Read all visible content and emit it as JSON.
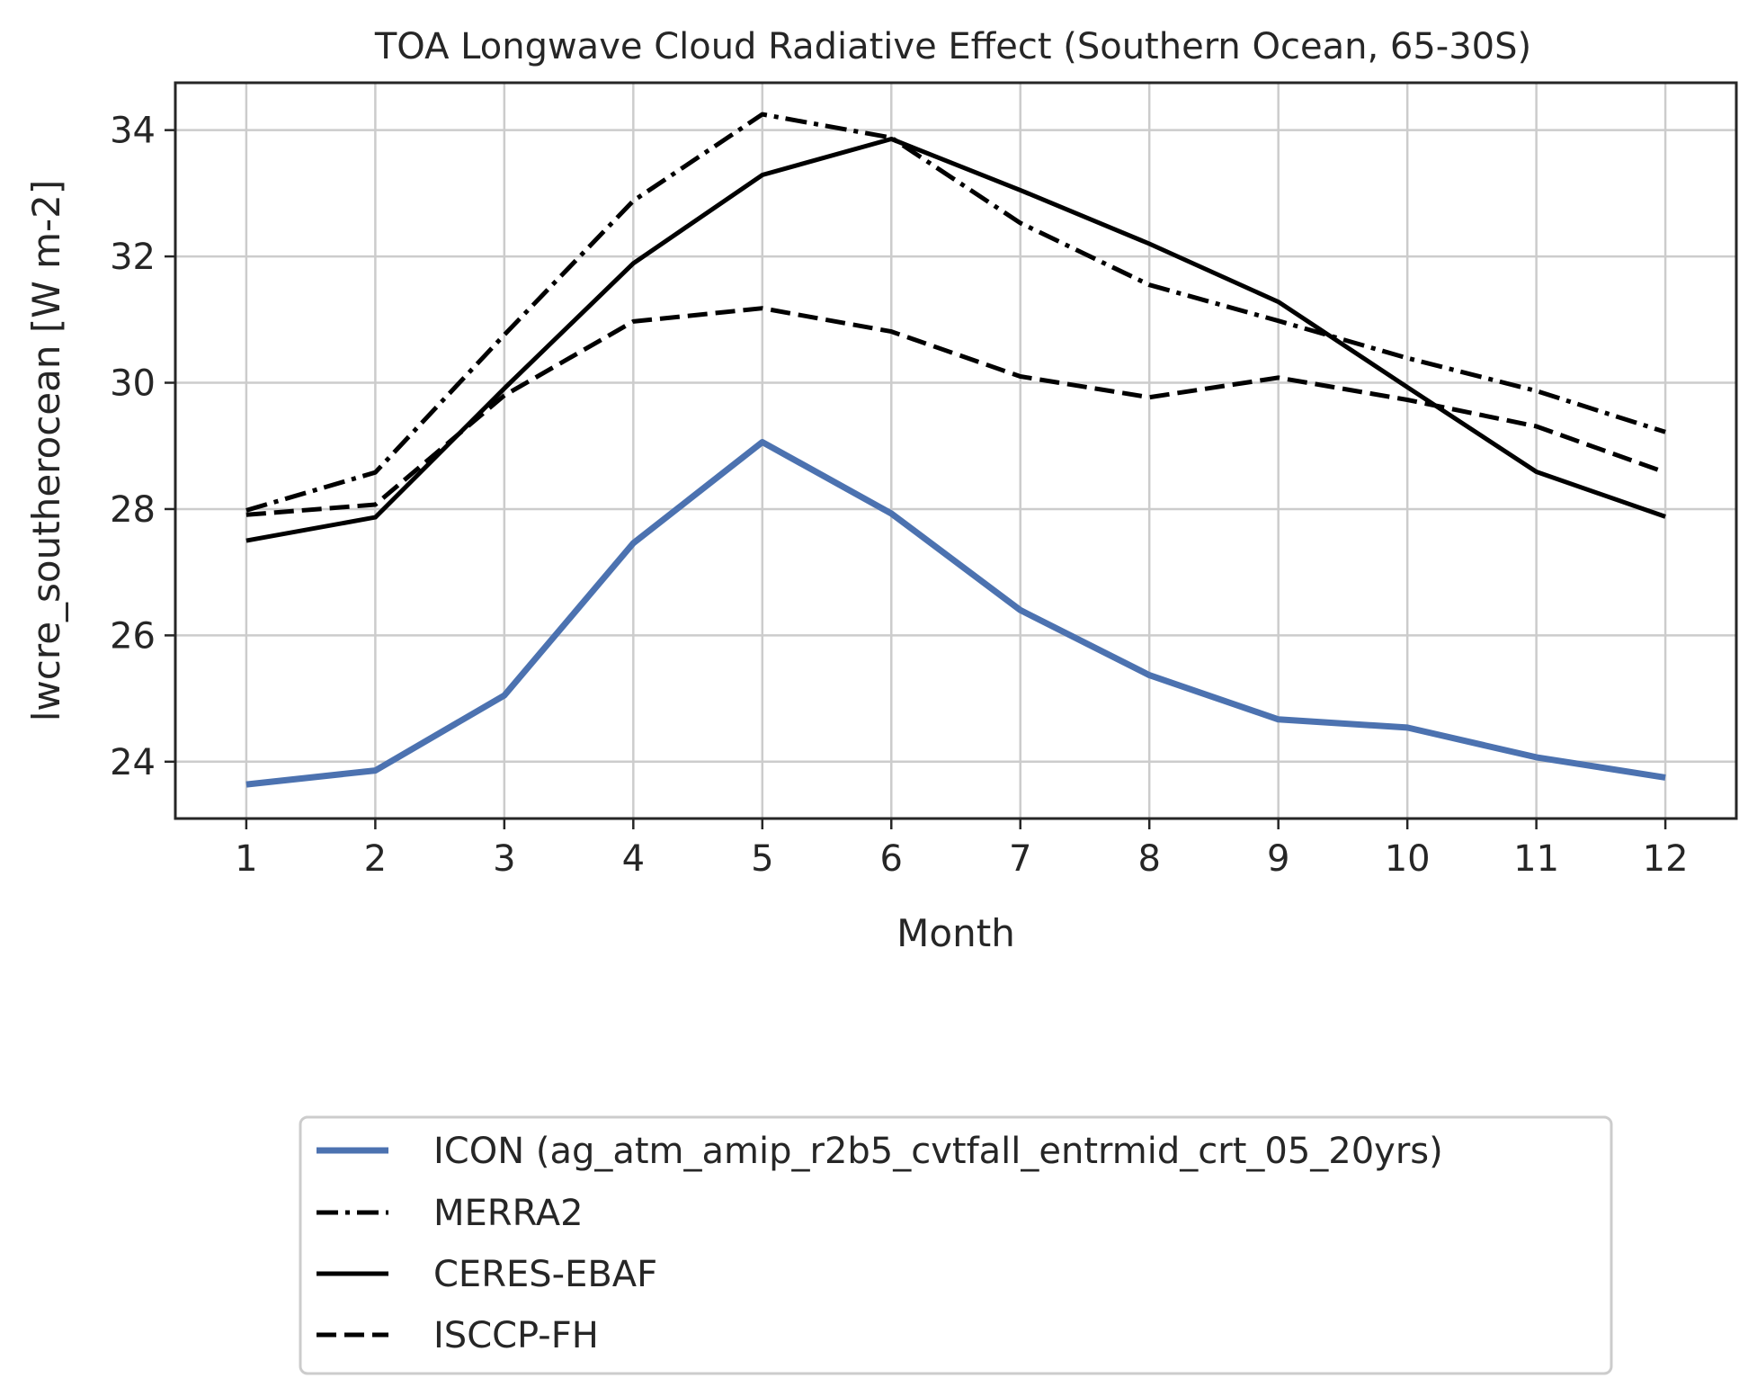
{
  "chart_data": {
    "type": "line",
    "title": "TOA Longwave Cloud Radiative Effect (Southern Ocean, 65-30S)",
    "xlabel": "Month",
    "ylabel": "lwcre_southerocean [W m-2]",
    "x": [
      1,
      2,
      3,
      4,
      5,
      6,
      7,
      8,
      9,
      10,
      11,
      12
    ],
    "xticks": [
      "1",
      "2",
      "3",
      "4",
      "5",
      "6",
      "7",
      "8",
      "9",
      "10",
      "11",
      "12"
    ],
    "yticks": [
      24,
      26,
      28,
      30,
      32,
      34
    ],
    "ytick_labels": [
      "24",
      "26",
      "28",
      "30",
      "32",
      "34"
    ],
    "xlim": [
      0.45,
      12.55
    ],
    "ylim": [
      23.1,
      34.75
    ],
    "grid": true,
    "legend_position": "below-center",
    "series": [
      {
        "name": "ICON (ag_atm_amip_r2b5_cvtfall_entrmid_crt_05_20yrs)",
        "color": "#4c72b0",
        "dash": "solid",
        "values": [
          23.64,
          23.86,
          25.05,
          27.46,
          29.06,
          27.93,
          26.4,
          25.37,
          24.67,
          24.54,
          24.07,
          23.75
        ]
      },
      {
        "name": "MERRA2",
        "color": "#000000",
        "dash": "dashdot",
        "values": [
          27.98,
          28.58,
          30.76,
          32.88,
          34.25,
          33.88,
          32.53,
          31.55,
          30.98,
          30.39,
          29.87,
          29.22
        ]
      },
      {
        "name": "CERES-EBAF",
        "color": "#000000",
        "dash": "solid",
        "values": [
          27.5,
          27.87,
          29.91,
          31.89,
          33.29,
          33.86,
          33.05,
          32.2,
          31.28,
          29.93,
          28.59,
          27.88
        ]
      },
      {
        "name": "ISCCP-FH",
        "color": "#000000",
        "dash": "dashed",
        "values": [
          27.91,
          28.07,
          29.8,
          30.97,
          31.18,
          30.81,
          30.1,
          29.77,
          30.08,
          29.73,
          29.31,
          28.58
        ]
      }
    ]
  }
}
